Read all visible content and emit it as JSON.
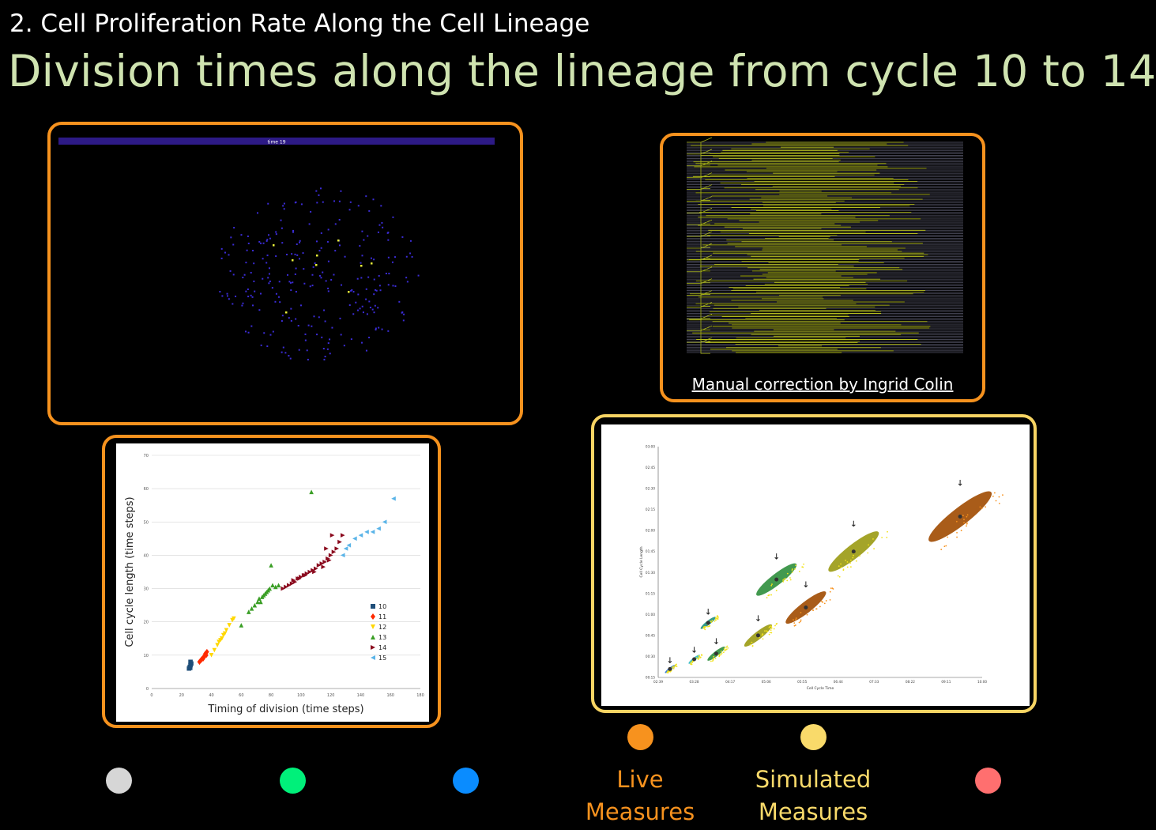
{
  "header": {
    "subtitle": "2. Cell Proliferation Rate Along the Cell Lineage",
    "title": "Division times along the lineage from cycle 10 to 14"
  },
  "panels": {
    "embryo": {
      "time_label": "time 19"
    },
    "lineage": {
      "caption": "Manual correction by Ingrid Colin"
    },
    "scatter": {
      "xlabel": "Timing of division (time steps)",
      "ylabel": "Cell cycle length (time steps)",
      "x_ticks": [
        "0",
        "20",
        "40",
        "60",
        "80",
        "100",
        "120",
        "140",
        "160",
        "180"
      ],
      "y_ticks": [
        "0",
        "10",
        "20",
        "30",
        "40",
        "50",
        "60",
        "70"
      ],
      "legend": [
        "10",
        "11",
        "12",
        "13",
        "14",
        "15"
      ]
    },
    "simulation": {
      "xlabel": "Cell Cycle Time",
      "ylabel": "Cell Cycle Length",
      "x_ticks": [
        "02:39",
        "03:28",
        "04:17",
        "05:06",
        "05:55",
        "06:44",
        "07:33",
        "08:22",
        "09:11",
        "10:00"
      ],
      "y_ticks": [
        "00:15",
        "00:30",
        "00:45",
        "01:00",
        "01:15",
        "01:30",
        "01:45",
        "02:00",
        "02:15",
        "02:30",
        "02:45",
        "03:00"
      ]
    }
  },
  "legend_dots": [
    {
      "color": "#d6d6d6",
      "label": []
    },
    {
      "color": "#00f07a",
      "label": []
    },
    {
      "color": "#0a8cff",
      "label": []
    },
    {
      "color": "#f7921e",
      "label": [
        "Live",
        "Measures"
      ]
    },
    {
      "color": "#f9da6a",
      "label": [
        "Simulated",
        "Measures"
      ]
    },
    {
      "color": "#ff6f6f",
      "label": []
    }
  ],
  "colors": {
    "title": "#cfe3b0",
    "frame_orange": "#f6921e",
    "frame_light": "#f7d463"
  },
  "chart_data": [
    {
      "type": "scatter",
      "title": "",
      "xlabel": "Timing of division (time steps)",
      "ylabel": "Cell cycle length (time steps)",
      "xlim": [
        0,
        180
      ],
      "ylim": [
        0,
        70
      ],
      "legend": "right",
      "series": [
        {
          "name": "10",
          "color": "#1f4e79",
          "marker": "square",
          "x": [
            25,
            25.5,
            26,
            26.5,
            26,
            25.8
          ],
          "y": [
            6,
            6.5,
            7,
            7.5,
            8,
            6.2
          ]
        },
        {
          "name": "11",
          "color": "#ff2a00",
          "marker": "diamond",
          "x": [
            32,
            33,
            34,
            35,
            35.5,
            36,
            37,
            34.5,
            33.5,
            36.5
          ],
          "y": [
            8,
            8.5,
            9,
            9.5,
            10,
            10.5,
            11,
            9,
            8.8,
            10
          ]
        },
        {
          "name": "12",
          "color": "#ffd700",
          "marker": "triangle-down",
          "x": [
            40,
            42,
            44,
            46,
            48,
            50,
            52,
            54,
            55,
            45,
            47,
            49
          ],
          "y": [
            10,
            11.5,
            13,
            14.5,
            16,
            17.5,
            19,
            20.5,
            21,
            14,
            15,
            16.5
          ]
        },
        {
          "name": "13",
          "color": "#3a9e25",
          "marker": "triangle-up",
          "x": [
            65,
            67,
            69,
            71,
            72,
            74,
            75,
            77,
            79,
            81,
            83,
            85,
            60,
            80,
            107,
            73,
            76,
            78
          ],
          "y": [
            23,
            24,
            25,
            26,
            27,
            27.5,
            28,
            29,
            30,
            31,
            30.5,
            31,
            19,
            37,
            59,
            26,
            28.5,
            29.5
          ]
        },
        {
          "name": "14",
          "color": "#8b0a1e",
          "marker": "triangle-right",
          "x": [
            88,
            90,
            92,
            94,
            96,
            98,
            100,
            102,
            104,
            106,
            108,
            110,
            112,
            114,
            116,
            118,
            120,
            122,
            124,
            126,
            128,
            95,
            99,
            103,
            109,
            115,
            119,
            121,
            117
          ],
          "y": [
            30,
            30.5,
            31,
            31.5,
            32,
            33,
            33.5,
            34,
            34.5,
            35,
            35.5,
            36,
            37,
            37.5,
            38,
            39,
            40,
            41,
            42,
            44,
            46,
            32.5,
            33,
            34,
            35,
            36.5,
            38.5,
            46,
            42
          ]
        },
        {
          "name": "15",
          "color": "#5ab4e8",
          "marker": "triangle-left",
          "x": [
            128,
            132,
            136,
            140,
            144,
            148,
            152,
            156,
            162,
            130
          ],
          "y": [
            40,
            43,
            45,
            46,
            47,
            47,
            48,
            50,
            57,
            42
          ]
        }
      ]
    },
    {
      "type": "scatter",
      "title": "",
      "xlabel": "Cell Cycle Time",
      "ylabel": "Cell Cycle Length",
      "x_ticks": [
        "02:39",
        "03:28",
        "04:17",
        "05:06",
        "05:55",
        "06:44",
        "07:33",
        "08:22",
        "09:11",
        "10:00"
      ],
      "y_ticks": [
        "00:15",
        "00:30",
        "00:45",
        "01:00",
        "01:15",
        "01:30",
        "01:45",
        "02:00",
        "02:15",
        "02:30",
        "02:45",
        "03:00"
      ],
      "series": [
        {
          "name": "",
          "color": "#1f6fd0",
          "clusters": [
            {
              "x": "02:55",
              "y": "00:21"
            }
          ]
        },
        {
          "name": "",
          "color": "#27b7c8",
          "clusters": [
            {
              "x": "03:28",
              "y": "00:28"
            }
          ]
        },
        {
          "name": "",
          "color": "#1d8f80",
          "clusters": [
            {
              "x": "03:47",
              "y": "00:54"
            }
          ]
        },
        {
          "name": "",
          "color": "#2e8e3c",
          "clusters": [
            {
              "x": "03:58",
              "y": "00:32"
            },
            {
              "x": "05:20",
              "y": "01:25"
            }
          ]
        },
        {
          "name": "",
          "color": "#9a9a12",
          "clusters": [
            {
              "x": "04:55",
              "y": "00:45"
            },
            {
              "x": "07:05",
              "y": "01:45"
            }
          ]
        },
        {
          "name": "",
          "color": "#a04a00",
          "clusters": [
            {
              "x": "06:00",
              "y": "01:05"
            },
            {
              "x": "09:30",
              "y": "02:10"
            }
          ]
        }
      ]
    }
  ]
}
